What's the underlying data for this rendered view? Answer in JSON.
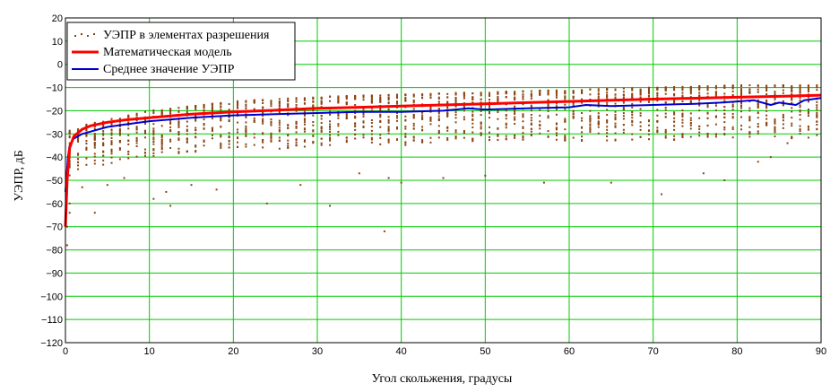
{
  "chart_data": {
    "type": "scatter",
    "xlabel": "Угол скольжения, градусы",
    "ylabel": "УЭПР, дБ",
    "xlim": [
      0,
      90
    ],
    "ylim": [
      -120,
      20
    ],
    "x_ticks": [
      0,
      10,
      20,
      30,
      40,
      50,
      60,
      70,
      80,
      90
    ],
    "y_ticks": [
      20,
      10,
      0,
      -10,
      -20,
      -30,
      -40,
      -50,
      -60,
      -70,
      -80,
      -90,
      -100,
      -110,
      -120
    ],
    "grid": true,
    "legend_position": "top-left",
    "series": [
      {
        "name": "УЭПР в элементах разрешения",
        "kind": "scatter",
        "color": "#8B4513",
        "points_per_column": 22,
        "columns": [
          {
            "x": 0.5,
            "min": -48,
            "max": -28
          },
          {
            "x": 1.5,
            "min": -46,
            "max": -27
          },
          {
            "x": 2.5,
            "min": -45,
            "max": -26
          },
          {
            "x": 5,
            "min": -43,
            "max": -24
          },
          {
            "x": 7.5,
            "min": -41,
            "max": -22
          },
          {
            "x": 10,
            "min": -40,
            "max": -20
          },
          {
            "x": 15,
            "min": -38,
            "max": -18
          },
          {
            "x": 20,
            "min": -37,
            "max": -16
          },
          {
            "x": 30,
            "min": -36,
            "max": -14
          },
          {
            "x": 40,
            "min": -35,
            "max": -13
          },
          {
            "x": 50,
            "min": -34,
            "max": -12
          },
          {
            "x": 60,
            "min": -33,
            "max": -11
          },
          {
            "x": 70,
            "min": -33,
            "max": -10
          },
          {
            "x": 80,
            "min": -32,
            "max": -9
          },
          {
            "x": 90,
            "min": -32,
            "max": -9
          }
        ],
        "outliers": [
          {
            "x": 0.2,
            "y": -78
          },
          {
            "x": 0.2,
            "y": -70
          },
          {
            "x": 0.5,
            "y": -64
          },
          {
            "x": 0.5,
            "y": -60
          },
          {
            "x": 3.5,
            "y": -64
          },
          {
            "x": 2,
            "y": -53
          },
          {
            "x": 5,
            "y": -52
          },
          {
            "x": 7,
            "y": -49
          },
          {
            "x": 10.5,
            "y": -58
          },
          {
            "x": 12,
            "y": -55
          },
          {
            "x": 12.5,
            "y": -61
          },
          {
            "x": 15,
            "y": -52
          },
          {
            "x": 18,
            "y": -54
          },
          {
            "x": 24,
            "y": -60
          },
          {
            "x": 28,
            "y": -52
          },
          {
            "x": 31.5,
            "y": -61
          },
          {
            "x": 35,
            "y": -47
          },
          {
            "x": 38,
            "y": -72
          },
          {
            "x": 38.5,
            "y": -49
          },
          {
            "x": 40,
            "y": -51
          },
          {
            "x": 45,
            "y": -49
          },
          {
            "x": 50,
            "y": -48
          },
          {
            "x": 57,
            "y": -51
          },
          {
            "x": 65,
            "y": -51
          },
          {
            "x": 71,
            "y": -56
          },
          {
            "x": 76,
            "y": -47
          },
          {
            "x": 78.5,
            "y": -50
          },
          {
            "x": 82.5,
            "y": -42
          },
          {
            "x": 84,
            "y": -40
          },
          {
            "x": 86,
            "y": -34
          }
        ]
      },
      {
        "name": "Математическая модель",
        "kind": "line",
        "color": "#FF0000",
        "x": [
          0,
          0.2,
          0.5,
          1,
          2,
          3,
          5,
          7,
          10,
          15,
          20,
          25,
          30,
          35,
          40,
          45,
          50,
          55,
          60,
          65,
          70,
          75,
          80,
          85,
          90
        ],
        "y": [
          -70,
          -50,
          -36,
          -31,
          -28,
          -26.5,
          -25,
          -24,
          -23,
          -21.5,
          -20.5,
          -19.8,
          -19,
          -18.5,
          -18,
          -17.5,
          -17,
          -16.5,
          -16,
          -15.5,
          -15,
          -14.6,
          -14.2,
          -13.8,
          -13.3
        ]
      },
      {
        "name": "Среднее значение УЭПР",
        "kind": "line",
        "color": "#0000CD",
        "x": [
          0,
          0.3,
          0.5,
          1,
          2,
          3,
          5,
          7,
          10,
          15,
          20,
          25,
          30,
          35,
          40,
          45,
          48,
          50,
          55,
          60,
          62,
          65,
          70,
          75,
          78,
          80,
          82,
          84,
          85,
          87,
          88,
          90
        ],
        "y": [
          -55,
          -40,
          -35,
          -32,
          -30,
          -29,
          -27,
          -26,
          -24.5,
          -23,
          -22,
          -21.5,
          -21,
          -20.5,
          -20.5,
          -20,
          -19,
          -19.5,
          -19,
          -18.5,
          -17.5,
          -18,
          -17.5,
          -17,
          -16.5,
          -16,
          -15.5,
          -17.5,
          -16.5,
          -17.5,
          -15.5,
          -14.5
        ]
      }
    ]
  }
}
